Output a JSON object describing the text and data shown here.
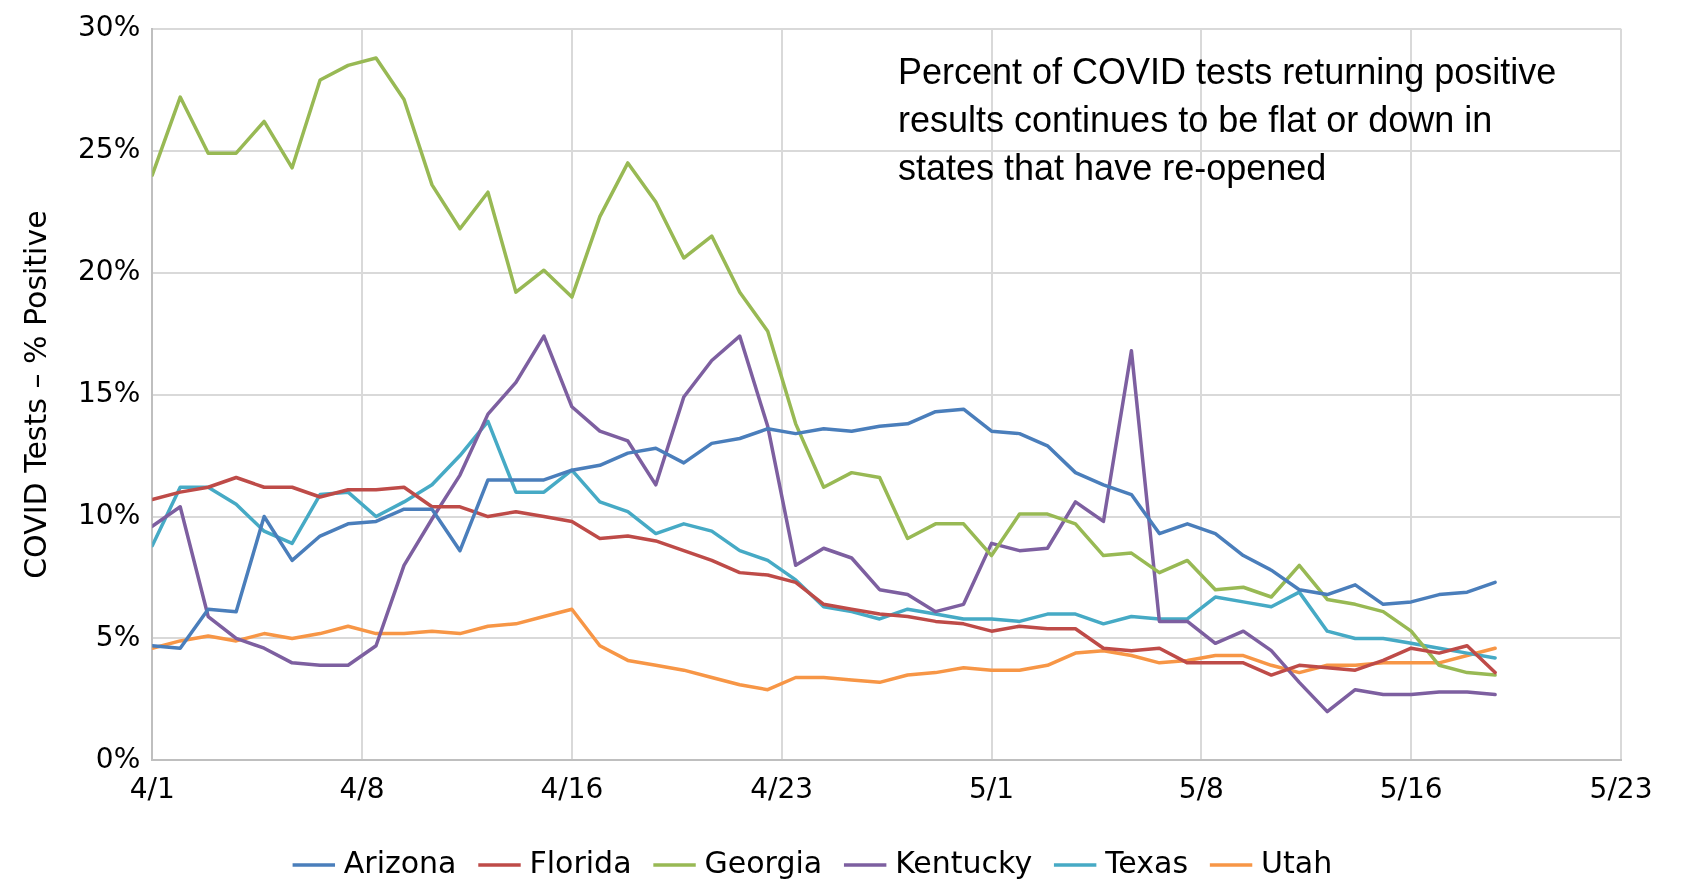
{
  "chart_data": {
    "type": "line",
    "ylabel": "COVID Tests – % Positive",
    "annotations": [
      "Percent of COVID tests returning positive results continues to be flat or down in states that have re-opened"
    ],
    "x": [
      "--04-01",
      "--04-02",
      "--04-03",
      "--04-04",
      "--04-05",
      "--04-06",
      "--04-07",
      "--04-08",
      "--04-09",
      "--04-10",
      "--04-11",
      "--04-12",
      "--04-13",
      "--04-14",
      "--04-15",
      "--04-16",
      "--04-17",
      "--04-18",
      "--04-19",
      "--04-20",
      "--04-21",
      "--04-22",
      "--04-23",
      "--04-24",
      "--04-25",
      "--04-26",
      "--04-27",
      "--04-28",
      "--04-29",
      "--04-30",
      "--05-01",
      "--05-02",
      "--05-03",
      "--05-04",
      "--05-05",
      "--05-06",
      "--05-07",
      "--05-08",
      "--05-09",
      "--05-10",
      "--05-11",
      "--05-12",
      "--05-13",
      "--05-14",
      "--05-15",
      "--05-16",
      "--05-17",
      "--05-18",
      "--05-19"
    ],
    "series": [
      {
        "name": "Arizona",
        "color": "#4a7ebb",
        "values": [
          4.7,
          4.6,
          6.2,
          6.1,
          10.0,
          8.2,
          9.2,
          9.7,
          9.8,
          10.3,
          10.3,
          8.6,
          11.5,
          11.5,
          11.5,
          11.9,
          12.1,
          12.6,
          12.8,
          12.2,
          13.0,
          13.2,
          13.6,
          13.4,
          13.6,
          13.5,
          13.7,
          13.8,
          14.3,
          14.4,
          13.5,
          13.4,
          12.9,
          11.8,
          11.3,
          10.9,
          9.3,
          9.7,
          9.3,
          8.4,
          7.8,
          7.0,
          6.8,
          7.2,
          6.4,
          6.5,
          6.8,
          6.9,
          7.3
        ]
      },
      {
        "name": "Florida",
        "color": "#be4b48",
        "values": [
          10.7,
          11.0,
          11.2,
          11.6,
          11.2,
          11.2,
          10.8,
          11.1,
          11.1,
          11.2,
          10.4,
          10.4,
          10.0,
          10.2,
          10.0,
          9.8,
          9.1,
          9.2,
          9.0,
          8.6,
          8.2,
          7.7,
          7.6,
          7.3,
          6.4,
          6.2,
          6.0,
          5.9,
          5.7,
          5.6,
          5.3,
          5.5,
          5.4,
          5.4,
          4.6,
          4.5,
          4.6,
          4.0,
          4.0,
          4.0,
          3.5,
          3.9,
          3.8,
          3.7,
          4.1,
          4.6,
          4.4,
          4.7,
          3.6
        ]
      },
      {
        "name": "Georgia",
        "color": "#98b954",
        "values": [
          24.0,
          27.2,
          24.9,
          24.9,
          26.2,
          24.3,
          27.9,
          28.5,
          28.8,
          27.1,
          23.6,
          21.8,
          23.3,
          19.2,
          20.1,
          19.0,
          22.3,
          24.5,
          22.9,
          20.6,
          21.5,
          19.2,
          17.6,
          13.8,
          11.2,
          11.8,
          11.6,
          9.1,
          9.7,
          9.7,
          8.4,
          10.1,
          10.1,
          9.7,
          8.4,
          8.5,
          7.7,
          8.2,
          7.0,
          7.1,
          6.7,
          8.0,
          6.6,
          6.4,
          6.1,
          5.3,
          3.9,
          3.6,
          3.5
        ]
      },
      {
        "name": "Kentucky",
        "color": "#7d5fa0",
        "values": [
          9.6,
          10.4,
          5.9,
          5.0,
          4.6,
          4.0,
          3.9,
          3.9,
          4.7,
          8.0,
          9.9,
          11.7,
          14.2,
          15.5,
          17.4,
          14.5,
          13.5,
          13.1,
          11.3,
          14.9,
          16.4,
          17.4,
          13.7,
          8.0,
          8.7,
          8.3,
          7.0,
          6.8,
          6.1,
          6.4,
          8.9,
          8.6,
          8.7,
          10.6,
          9.8,
          16.8,
          5.7,
          5.7,
          4.8,
          5.3,
          4.5,
          3.2,
          2.0,
          2.9,
          2.7,
          2.7,
          2.8,
          2.8,
          2.7
        ]
      },
      {
        "name": "Texas",
        "color": "#46aac5",
        "values": [
          8.8,
          11.2,
          11.2,
          10.5,
          9.4,
          8.9,
          10.9,
          11.0,
          10.0,
          10.6,
          11.3,
          12.5,
          13.9,
          11.0,
          11.0,
          11.9,
          10.6,
          10.2,
          9.3,
          9.7,
          9.4,
          8.6,
          8.2,
          7.4,
          6.3,
          6.1,
          5.8,
          6.2,
          6.0,
          5.8,
          5.8,
          5.7,
          6.0,
          6.0,
          5.6,
          5.9,
          5.8,
          5.8,
          6.7,
          6.5,
          6.3,
          6.9,
          5.3,
          5.0,
          5.0,
          4.8,
          4.6,
          4.4,
          4.2
        ]
      },
      {
        "name": "Utah",
        "color": "#f79646",
        "values": [
          4.6,
          4.9,
          5.1,
          4.9,
          5.2,
          5.0,
          5.2,
          5.5,
          5.2,
          5.2,
          5.3,
          5.2,
          5.5,
          5.6,
          5.9,
          6.2,
          4.7,
          4.1,
          3.9,
          3.7,
          3.4,
          3.1,
          2.9,
          3.4,
          3.4,
          3.3,
          3.2,
          3.5,
          3.6,
          3.8,
          3.7,
          3.7,
          3.9,
          4.4,
          4.5,
          4.3,
          4.0,
          4.1,
          4.3,
          4.3,
          3.9,
          3.6,
          3.9,
          3.9,
          4.0,
          4.0,
          4.0,
          4.3,
          4.6
        ]
      }
    ],
    "xlim": [
      "--04-01",
      "--05-23T12:00"
    ],
    "xticks": [
      {
        "value": "--04-01",
        "label": "4/1"
      },
      {
        "value": "--04-08T12:00",
        "label": "4/8"
      },
      {
        "value": "--04-16",
        "label": "4/16"
      },
      {
        "value": "--04-23T12:00",
        "label": "4/23"
      },
      {
        "value": "--05-01",
        "label": "5/1"
      },
      {
        "value": "--05-08T12:00",
        "label": "5/8"
      },
      {
        "value": "--05-16",
        "label": "5/16"
      },
      {
        "value": "--05-23T12:00",
        "label": "5/23"
      }
    ],
    "ylim": [
      0,
      30
    ],
    "yticks": [
      {
        "value": 0,
        "label": "0%"
      },
      {
        "value": 5,
        "label": "5%"
      },
      {
        "value": 10,
        "label": "10%"
      },
      {
        "value": 15,
        "label": "15%"
      },
      {
        "value": 20,
        "label": "20%"
      },
      {
        "value": 25,
        "label": "25%"
      },
      {
        "value": 30,
        "label": "30%"
      }
    ],
    "grid": true,
    "legend": "bottom",
    "marker": "none",
    "line_style": "solid"
  }
}
